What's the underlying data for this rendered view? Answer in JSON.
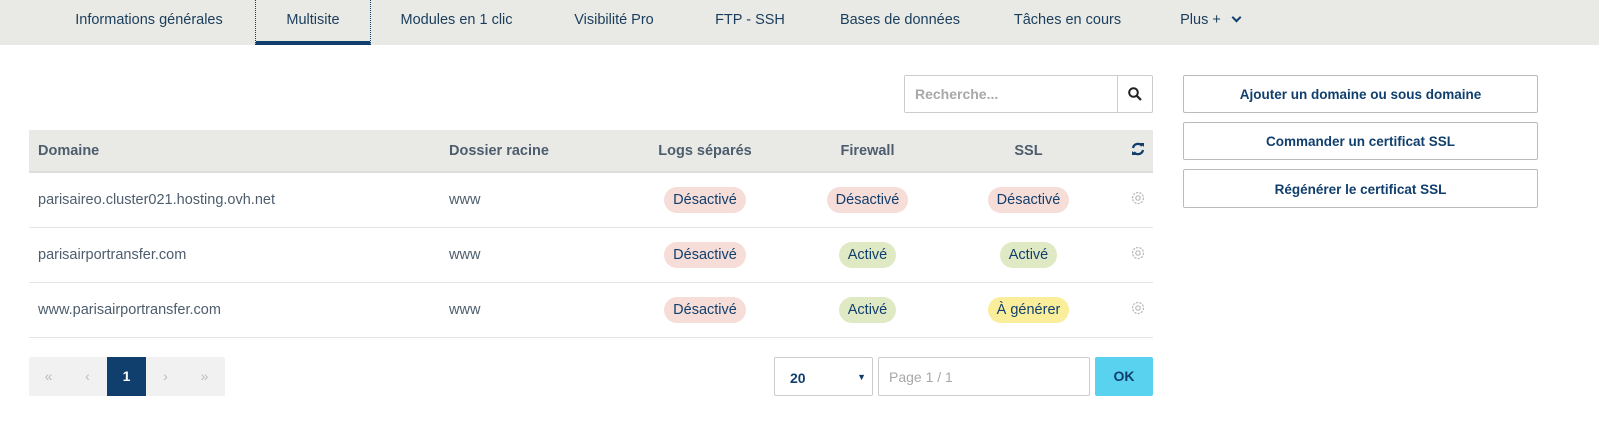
{
  "tabs": [
    {
      "label": "Informations générales"
    },
    {
      "label": "Multisite",
      "active": true
    },
    {
      "label": "Modules en 1 clic"
    },
    {
      "label": "Visibilité Pro"
    },
    {
      "label": "FTP - SSH"
    },
    {
      "label": "Bases de données"
    },
    {
      "label": "Tâches en cours"
    },
    {
      "label": "Plus +"
    }
  ],
  "search": {
    "placeholder": "Recherche...",
    "icon": "search-icon"
  },
  "table": {
    "headers": [
      "Domaine",
      "Dossier racine",
      "Logs séparés",
      "Firewall",
      "SSL"
    ],
    "rows": [
      {
        "domain": "parisaireo.cluster021.hosting.ovh.net",
        "root": "www",
        "logs": "Désactivé",
        "firewall": "Désactivé",
        "ssl": "Désactivé"
      },
      {
        "domain": "parisairportransfer.com",
        "root": "www",
        "logs": "Désactivé",
        "firewall": "Activé",
        "ssl": "Activé"
      },
      {
        "domain": "www.parisairportransfer.com",
        "root": "www",
        "logs": "Désactivé",
        "firewall": "Activé",
        "ssl": "À générer"
      }
    ]
  },
  "actions": [
    "Ajouter un domaine ou sous domaine",
    "Commander un certificat SSL",
    "Régénérer le certificat SSL"
  ],
  "pagination": {
    "first": "«",
    "prev": "‹",
    "current": "1",
    "next": "›",
    "last": "»",
    "page_size": "20",
    "page_placeholder": "Page 1 / 1",
    "ok": "OK"
  },
  "colors": {
    "primary": "#113f6d",
    "off": "#f6ddd8",
    "on": "#dfe9c4",
    "pending": "#fbee9a",
    "ok_button": "#59d2ef"
  }
}
